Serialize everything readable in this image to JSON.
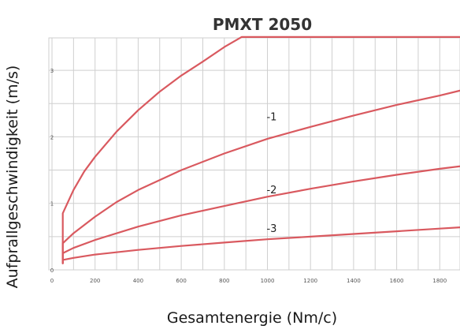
{
  "chart_data": {
    "type": "line",
    "title": "PMXT 2050",
    "xlabel": "Gesamtenergie (Nm/c)",
    "ylabel": "Aufprallgeschwindigkeit (m/s)",
    "xlim": [
      0,
      1900
    ],
    "ylim": [
      0,
      3.5
    ],
    "xticks": [
      0,
      200,
      400,
      600,
      800,
      1000,
      1200,
      1400,
      1600,
      1800
    ],
    "yticks": [
      0,
      1,
      2,
      3
    ],
    "grid": true,
    "series": [
      {
        "name": "",
        "color": "#d9595f",
        "x": [
          50,
          50,
          100,
          150,
          200,
          300,
          400,
          500,
          600,
          700,
          800,
          880,
          1000,
          1200,
          1400,
          1600,
          1800,
          1900
        ],
        "y": [
          0.1,
          0.85,
          1.2,
          1.48,
          1.7,
          2.08,
          2.4,
          2.68,
          2.92,
          3.13,
          3.35,
          3.5,
          3.5,
          3.5,
          3.5,
          3.5,
          3.5,
          3.5
        ]
      },
      {
        "name": "-1",
        "color": "#d9595f",
        "x": [
          50,
          50,
          100,
          200,
          300,
          400,
          600,
          800,
          1000,
          1200,
          1400,
          1600,
          1800,
          1900
        ],
        "y": [
          0.1,
          0.4,
          0.55,
          0.8,
          1.02,
          1.2,
          1.5,
          1.75,
          1.97,
          2.15,
          2.32,
          2.48,
          2.62,
          2.7
        ]
      },
      {
        "name": "-2",
        "color": "#d9595f",
        "x": [
          50,
          50,
          100,
          200,
          400,
          600,
          800,
          1000,
          1200,
          1400,
          1600,
          1800,
          1900
        ],
        "y": [
          0.1,
          0.25,
          0.33,
          0.45,
          0.65,
          0.82,
          0.96,
          1.1,
          1.22,
          1.33,
          1.43,
          1.52,
          1.56
        ]
      },
      {
        "name": "-3",
        "color": "#d9595f",
        "x": [
          50,
          50,
          100,
          200,
          400,
          600,
          800,
          1000,
          1200,
          1400,
          1600,
          1800,
          1900
        ],
        "y": [
          0.1,
          0.15,
          0.18,
          0.23,
          0.3,
          0.36,
          0.41,
          0.46,
          0.5,
          0.54,
          0.58,
          0.62,
          0.64
        ]
      }
    ],
    "curve_labels": [
      {
        "text": "-1",
        "x": 1020,
        "y": 2.25
      },
      {
        "text": "-2",
        "x": 1020,
        "y": 1.15
      },
      {
        "text": "-3",
        "x": 1020,
        "y": 0.57
      }
    ]
  }
}
